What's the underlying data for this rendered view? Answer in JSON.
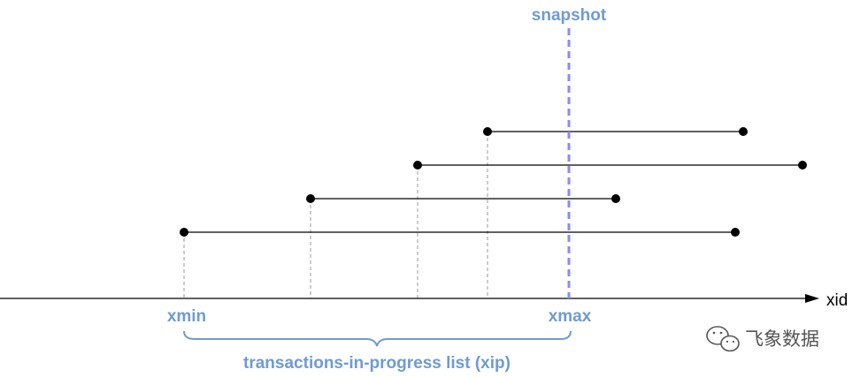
{
  "colors": {
    "accent": "#6f9bd1",
    "snapshot_line": "#8a8af5",
    "guide": "#aaaaaa",
    "line": "#000000",
    "watermark": "#555555"
  },
  "labels": {
    "snapshot": "snapshot",
    "axis": "xid",
    "xmin": "xmin",
    "xmax": "xmax",
    "xip": "transactions-in-progress list (xip)"
  },
  "watermark": {
    "icon": "wechat-icon",
    "text": "飞象数据"
  },
  "transactions": [
    {
      "start": 551,
      "end": 840
    },
    {
      "start": 472,
      "end": 907
    },
    {
      "start": 351,
      "end": 696
    },
    {
      "start": 208,
      "end": 831
    }
  ]
}
